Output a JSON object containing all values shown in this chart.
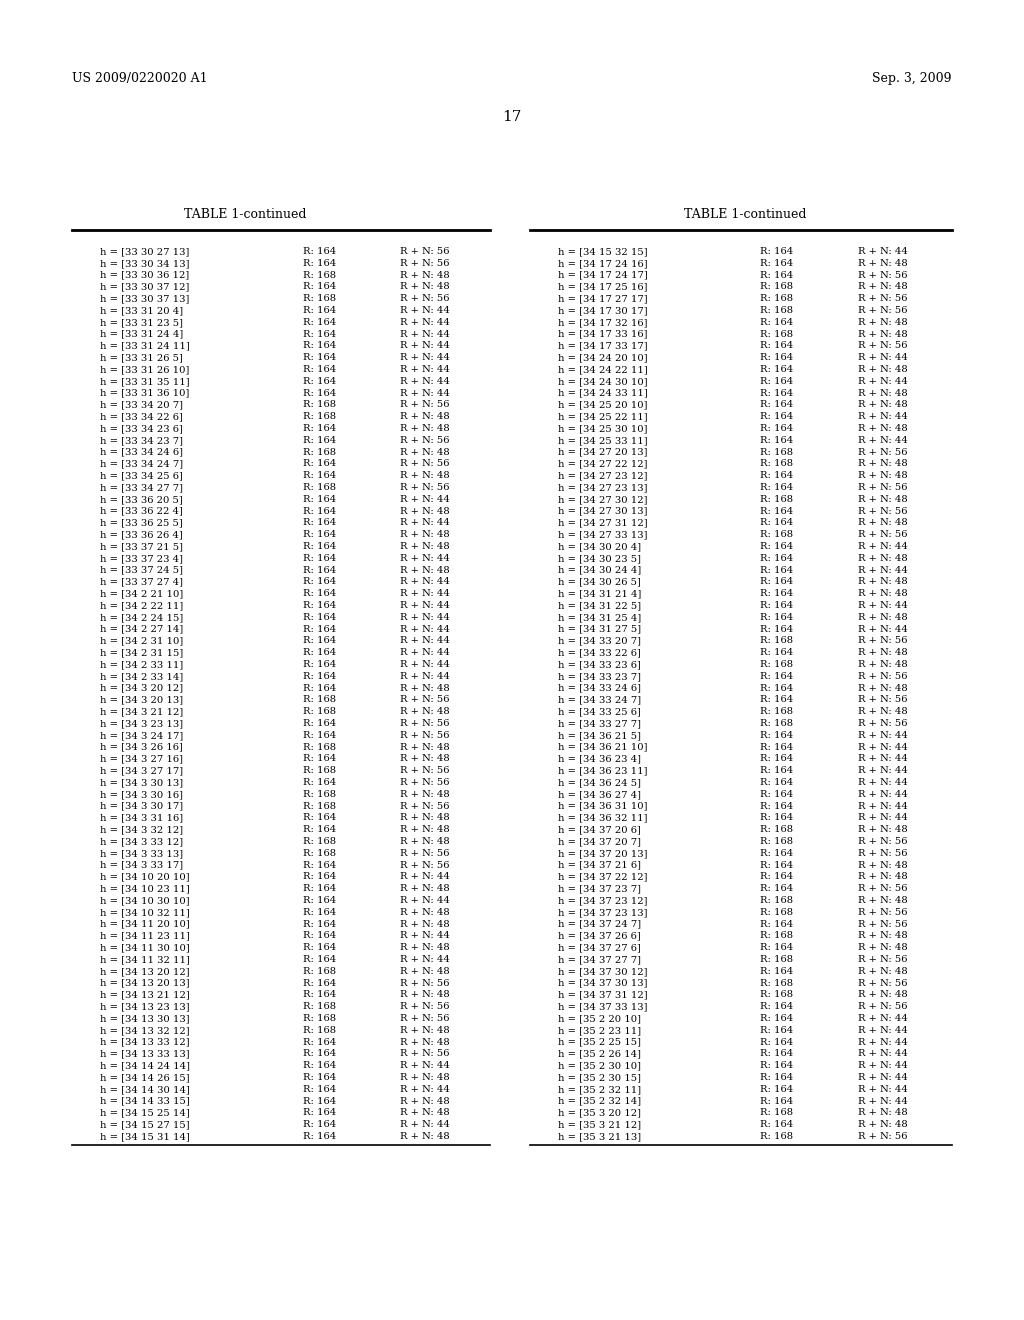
{
  "header_left": "US 2009/0220020 A1",
  "header_right": "Sep. 3, 2009",
  "page_number": "17",
  "table_title": "TABLE 1-continued",
  "background_color": "#ffffff",
  "text_color": "#000000",
  "left_column": [
    [
      "h = [33 30 27 13]",
      "R: 164",
      "R + N: 56"
    ],
    [
      "h = [33 30 34 13]",
      "R: 164",
      "R + N: 56"
    ],
    [
      "h = [33 30 36 12]",
      "R: 168",
      "R + N: 48"
    ],
    [
      "h = [33 30 37 12]",
      "R: 164",
      "R + N: 48"
    ],
    [
      "h = [33 30 37 13]",
      "R: 168",
      "R + N: 56"
    ],
    [
      "h = [33 31 20 4]",
      "R: 164",
      "R + N: 44"
    ],
    [
      "h = [33 31 23 5]",
      "R: 164",
      "R + N: 44"
    ],
    [
      "h = [33 31 24 4]",
      "R: 164",
      "R + N: 44"
    ],
    [
      "h = [33 31 24 11]",
      "R: 164",
      "R + N: 44"
    ],
    [
      "h = [33 31 26 5]",
      "R: 164",
      "R + N: 44"
    ],
    [
      "h = [33 31 26 10]",
      "R: 164",
      "R + N: 44"
    ],
    [
      "h = [33 31 35 11]",
      "R: 164",
      "R + N: 44"
    ],
    [
      "h = [33 31 36 10]",
      "R: 164",
      "R + N: 44"
    ],
    [
      "h = [33 34 20 7]",
      "R: 168",
      "R + N: 56"
    ],
    [
      "h = [33 34 22 6]",
      "R: 168",
      "R + N: 48"
    ],
    [
      "h = [33 34 23 6]",
      "R: 164",
      "R + N: 48"
    ],
    [
      "h = [33 34 23 7]",
      "R: 164",
      "R + N: 56"
    ],
    [
      "h = [33 34 24 6]",
      "R: 168",
      "R + N: 48"
    ],
    [
      "h = [33 34 24 7]",
      "R: 164",
      "R + N: 56"
    ],
    [
      "h = [33 34 25 6]",
      "R: 164",
      "R + N: 48"
    ],
    [
      "h = [33 34 27 7]",
      "R: 168",
      "R + N: 56"
    ],
    [
      "h = [33 36 20 5]",
      "R: 164",
      "R + N: 44"
    ],
    [
      "h = [33 36 22 4]",
      "R: 164",
      "R + N: 48"
    ],
    [
      "h = [33 36 25 5]",
      "R: 164",
      "R + N: 44"
    ],
    [
      "h = [33 36 26 4]",
      "R: 164",
      "R + N: 48"
    ],
    [
      "h = [33 37 21 5]",
      "R: 164",
      "R + N: 48"
    ],
    [
      "h = [33 37 23 4]",
      "R: 164",
      "R + N: 44"
    ],
    [
      "h = [33 37 24 5]",
      "R: 164",
      "R + N: 48"
    ],
    [
      "h = [33 37 27 4]",
      "R: 164",
      "R + N: 44"
    ],
    [
      "h = [34 2 21 10]",
      "R: 164",
      "R + N: 44"
    ],
    [
      "h = [34 2 22 11]",
      "R: 164",
      "R + N: 44"
    ],
    [
      "h = [34 2 24 15]",
      "R: 164",
      "R + N: 44"
    ],
    [
      "h = [34 2 27 14]",
      "R: 164",
      "R + N: 44"
    ],
    [
      "h = [34 2 31 10]",
      "R: 164",
      "R + N: 44"
    ],
    [
      "h = [34 2 31 15]",
      "R: 164",
      "R + N: 44"
    ],
    [
      "h = [34 2 33 11]",
      "R: 164",
      "R + N: 44"
    ],
    [
      "h = [34 2 33 14]",
      "R: 164",
      "R + N: 44"
    ],
    [
      "h = [34 3 20 12]",
      "R: 164",
      "R + N: 48"
    ],
    [
      "h = [34 3 20 13]",
      "R: 168",
      "R + N: 56"
    ],
    [
      "h = [34 3 21 12]",
      "R: 168",
      "R + N: 48"
    ],
    [
      "h = [34 3 23 13]",
      "R: 164",
      "R + N: 56"
    ],
    [
      "h = [34 3 24 17]",
      "R: 164",
      "R + N: 56"
    ],
    [
      "h = [34 3 26 16]",
      "R: 168",
      "R + N: 48"
    ],
    [
      "h = [34 3 27 16]",
      "R: 164",
      "R + N: 48"
    ],
    [
      "h = [34 3 27 17]",
      "R: 168",
      "R + N: 56"
    ],
    [
      "h = [34 3 30 13]",
      "R: 164",
      "R + N: 56"
    ],
    [
      "h = [34 3 30 16]",
      "R: 168",
      "R + N: 48"
    ],
    [
      "h = [34 3 30 17]",
      "R: 168",
      "R + N: 56"
    ],
    [
      "h = [34 3 31 16]",
      "R: 164",
      "R + N: 48"
    ],
    [
      "h = [34 3 32 12]",
      "R: 164",
      "R + N: 48"
    ],
    [
      "h = [34 3 33 12]",
      "R: 168",
      "R + N: 48"
    ],
    [
      "h = [34 3 33 13]",
      "R: 168",
      "R + N: 56"
    ],
    [
      "h = [34 3 33 17]",
      "R: 164",
      "R + N: 56"
    ],
    [
      "h = [34 10 20 10]",
      "R: 164",
      "R + N: 44"
    ],
    [
      "h = [34 10 23 11]",
      "R: 164",
      "R + N: 48"
    ],
    [
      "h = [34 10 30 10]",
      "R: 164",
      "R + N: 44"
    ],
    [
      "h = [34 10 32 11]",
      "R: 164",
      "R + N: 48"
    ],
    [
      "h = [34 11 20 10]",
      "R: 164",
      "R + N: 48"
    ],
    [
      "h = [34 11 23 11]",
      "R: 164",
      "R + N: 44"
    ],
    [
      "h = [34 11 30 10]",
      "R: 164",
      "R + N: 48"
    ],
    [
      "h = [34 11 32 11]",
      "R: 164",
      "R + N: 44"
    ],
    [
      "h = [34 13 20 12]",
      "R: 168",
      "R + N: 48"
    ],
    [
      "h = [34 13 20 13]",
      "R: 164",
      "R + N: 56"
    ],
    [
      "h = [34 13 21 12]",
      "R: 164",
      "R + N: 48"
    ],
    [
      "h = [34 13 23 13]",
      "R: 168",
      "R + N: 56"
    ],
    [
      "h = [34 13 30 13]",
      "R: 168",
      "R + N: 56"
    ],
    [
      "h = [34 13 32 12]",
      "R: 168",
      "R + N: 48"
    ],
    [
      "h = [34 13 33 12]",
      "R: 164",
      "R + N: 48"
    ],
    [
      "h = [34 13 33 13]",
      "R: 164",
      "R + N: 56"
    ],
    [
      "h = [34 14 24 14]",
      "R: 164",
      "R + N: 44"
    ],
    [
      "h = [34 14 26 15]",
      "R: 164",
      "R + N: 48"
    ],
    [
      "h = [34 14 30 14]",
      "R: 164",
      "R + N: 44"
    ],
    [
      "h = [34 14 33 15]",
      "R: 164",
      "R + N: 48"
    ],
    [
      "h = [34 15 25 14]",
      "R: 164",
      "R + N: 48"
    ],
    [
      "h = [34 15 27 15]",
      "R: 164",
      "R + N: 44"
    ],
    [
      "h = [34 15 31 14]",
      "R: 164",
      "R + N: 48"
    ]
  ],
  "right_column": [
    [
      "h = [34 15 32 15]",
      "R: 164",
      "R + N: 44"
    ],
    [
      "h = [34 17 24 16]",
      "R: 164",
      "R + N: 48"
    ],
    [
      "h = [34 17 24 17]",
      "R: 164",
      "R + N: 56"
    ],
    [
      "h = [34 17 25 16]",
      "R: 168",
      "R + N: 48"
    ],
    [
      "h = [34 17 27 17]",
      "R: 168",
      "R + N: 56"
    ],
    [
      "h = [34 17 30 17]",
      "R: 168",
      "R + N: 56"
    ],
    [
      "h = [34 17 32 16]",
      "R: 164",
      "R + N: 48"
    ],
    [
      "h = [34 17 33 16]",
      "R: 168",
      "R + N: 48"
    ],
    [
      "h = [34 17 33 17]",
      "R: 164",
      "R + N: 56"
    ],
    [
      "h = [34 24 20 10]",
      "R: 164",
      "R + N: 44"
    ],
    [
      "h = [34 24 22 11]",
      "R: 164",
      "R + N: 48"
    ],
    [
      "h = [34 24 30 10]",
      "R: 164",
      "R + N: 44"
    ],
    [
      "h = [34 24 33 11]",
      "R: 164",
      "R + N: 48"
    ],
    [
      "h = [34 25 20 10]",
      "R: 164",
      "R + N: 48"
    ],
    [
      "h = [34 25 22 11]",
      "R: 164",
      "R + N: 44"
    ],
    [
      "h = [34 25 30 10]",
      "R: 164",
      "R + N: 48"
    ],
    [
      "h = [34 25 33 11]",
      "R: 164",
      "R + N: 44"
    ],
    [
      "h = [34 27 20 13]",
      "R: 168",
      "R + N: 56"
    ],
    [
      "h = [34 27 22 12]",
      "R: 168",
      "R + N: 48"
    ],
    [
      "h = [34 27 23 12]",
      "R: 164",
      "R + N: 48"
    ],
    [
      "h = [34 27 23 13]",
      "R: 164",
      "R + N: 56"
    ],
    [
      "h = [34 27 30 12]",
      "R: 168",
      "R + N: 48"
    ],
    [
      "h = [34 27 30 13]",
      "R: 164",
      "R + N: 56"
    ],
    [
      "h = [34 27 31 12]",
      "R: 164",
      "R + N: 48"
    ],
    [
      "h = [34 27 33 13]",
      "R: 168",
      "R + N: 56"
    ],
    [
      "h = [34 30 20 4]",
      "R: 164",
      "R + N: 44"
    ],
    [
      "h = [34 30 23 5]",
      "R: 164",
      "R + N: 48"
    ],
    [
      "h = [34 30 24 4]",
      "R: 164",
      "R + N: 44"
    ],
    [
      "h = [34 30 26 5]",
      "R: 164",
      "R + N: 48"
    ],
    [
      "h = [34 31 21 4]",
      "R: 164",
      "R + N: 48"
    ],
    [
      "h = [34 31 22 5]",
      "R: 164",
      "R + N: 44"
    ],
    [
      "h = [34 31 25 4]",
      "R: 164",
      "R + N: 48"
    ],
    [
      "h = [34 31 27 5]",
      "R: 164",
      "R + N: 44"
    ],
    [
      "h = [34 33 20 7]",
      "R: 168",
      "R + N: 56"
    ],
    [
      "h = [34 33 22 6]",
      "R: 164",
      "R + N: 48"
    ],
    [
      "h = [34 33 23 6]",
      "R: 168",
      "R + N: 48"
    ],
    [
      "h = [34 33 23 7]",
      "R: 164",
      "R + N: 56"
    ],
    [
      "h = [34 33 24 6]",
      "R: 164",
      "R + N: 48"
    ],
    [
      "h = [34 33 24 7]",
      "R: 164",
      "R + N: 56"
    ],
    [
      "h = [34 33 25 6]",
      "R: 168",
      "R + N: 48"
    ],
    [
      "h = [34 33 27 7]",
      "R: 168",
      "R + N: 56"
    ],
    [
      "h = [34 36 21 5]",
      "R: 164",
      "R + N: 44"
    ],
    [
      "h = [34 36 21 10]",
      "R: 164",
      "R + N: 44"
    ],
    [
      "h = [34 36 23 4]",
      "R: 164",
      "R + N: 44"
    ],
    [
      "h = [34 36 23 11]",
      "R: 164",
      "R + N: 44"
    ],
    [
      "h = [34 36 24 5]",
      "R: 164",
      "R + N: 44"
    ],
    [
      "h = [34 36 27 4]",
      "R: 164",
      "R + N: 44"
    ],
    [
      "h = [34 36 31 10]",
      "R: 164",
      "R + N: 44"
    ],
    [
      "h = [34 36 32 11]",
      "R: 164",
      "R + N: 44"
    ],
    [
      "h = [34 37 20 6]",
      "R: 168",
      "R + N: 48"
    ],
    [
      "h = [34 37 20 7]",
      "R: 168",
      "R + N: 56"
    ],
    [
      "h = [34 37 20 13]",
      "R: 164",
      "R + N: 56"
    ],
    [
      "h = [34 37 21 6]",
      "R: 164",
      "R + N: 48"
    ],
    [
      "h = [34 37 22 12]",
      "R: 164",
      "R + N: 48"
    ],
    [
      "h = [34 37 23 7]",
      "R: 164",
      "R + N: 56"
    ],
    [
      "h = [34 37 23 12]",
      "R: 168",
      "R + N: 48"
    ],
    [
      "h = [34 37 23 13]",
      "R: 168",
      "R + N: 56"
    ],
    [
      "h = [34 37 24 7]",
      "R: 164",
      "R + N: 56"
    ],
    [
      "h = [34 37 26 6]",
      "R: 168",
      "R + N: 48"
    ],
    [
      "h = [34 37 27 6]",
      "R: 164",
      "R + N: 48"
    ],
    [
      "h = [34 37 27 7]",
      "R: 168",
      "R + N: 56"
    ],
    [
      "h = [34 37 30 12]",
      "R: 164",
      "R + N: 48"
    ],
    [
      "h = [34 37 30 13]",
      "R: 168",
      "R + N: 56"
    ],
    [
      "h = [34 37 31 12]",
      "R: 168",
      "R + N: 48"
    ],
    [
      "h = [34 37 33 13]",
      "R: 164",
      "R + N: 56"
    ],
    [
      "h = [35 2 20 10]",
      "R: 164",
      "R + N: 44"
    ],
    [
      "h = [35 2 23 11]",
      "R: 164",
      "R + N: 44"
    ],
    [
      "h = [35 2 25 15]",
      "R: 164",
      "R + N: 44"
    ],
    [
      "h = [35 2 26 14]",
      "R: 164",
      "R + N: 44"
    ],
    [
      "h = [35 2 30 10]",
      "R: 164",
      "R + N: 44"
    ],
    [
      "h = [35 2 30 15]",
      "R: 164",
      "R + N: 44"
    ],
    [
      "h = [35 2 32 11]",
      "R: 164",
      "R + N: 44"
    ],
    [
      "h = [35 2 32 14]",
      "R: 164",
      "R + N: 44"
    ],
    [
      "h = [35 3 20 12]",
      "R: 168",
      "R + N: 48"
    ],
    [
      "h = [35 3 21 12]",
      "R: 164",
      "R + N: 48"
    ],
    [
      "h = [35 3 21 13]",
      "R: 168",
      "R + N: 56"
    ]
  ]
}
